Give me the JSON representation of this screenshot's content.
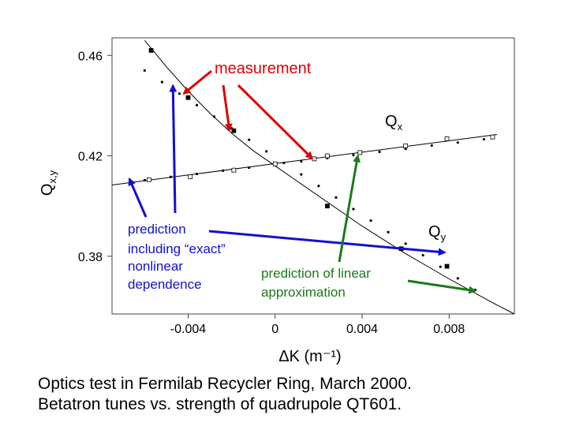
{
  "chart_data": {
    "type": "scatter",
    "xlabel": "ΔK (m⁻¹)",
    "ylabel": "Q",
    "ylabel_sub": "x,y",
    "xlim": [
      -0.0075,
      0.011
    ],
    "ylim": [
      0.357,
      0.467
    ],
    "x_ticks": [
      -0.004,
      0,
      0.004,
      0.008
    ],
    "x_tick_labels": [
      "-0.004",
      "0",
      "0.004",
      "0.008"
    ],
    "y_ticks": [
      0.38,
      0.42,
      0.46
    ],
    "y_tick_labels": [
      "0.38",
      "0.42",
      "0.46"
    ],
    "series": [
      {
        "name": "Q",
        "name_sub": "x",
        "measurement_marker": "open-square",
        "measurements": [
          {
            "x": -0.0058,
            "y": 0.4105
          },
          {
            "x": -0.0039,
            "y": 0.4117
          },
          {
            "x": -0.0019,
            "y": 0.4143
          },
          {
            "x": 0.0,
            "y": 0.4168
          },
          {
            "x": 0.0018,
            "y": 0.4188
          },
          {
            "x": 0.0024,
            "y": 0.42
          },
          {
            "x": 0.0039,
            "y": 0.4213
          },
          {
            "x": 0.006,
            "y": 0.424
          },
          {
            "x": 0.0079,
            "y": 0.4268
          },
          {
            "x": 0.01,
            "y": 0.4275
          }
        ],
        "nonlinear_curve": [
          {
            "x": -0.0075,
            "y": 0.4084
          },
          {
            "x": 0.0102,
            "y": 0.4285
          }
        ],
        "linear_dots": [
          {
            "x": -0.006,
            "y": 0.4103
          },
          {
            "x": -0.0048,
            "y": 0.4116
          },
          {
            "x": -0.0036,
            "y": 0.4128
          },
          {
            "x": -0.0024,
            "y": 0.4141
          },
          {
            "x": -0.0012,
            "y": 0.4153
          },
          {
            "x": 0.0,
            "y": 0.4166
          },
          {
            "x": 0.0012,
            "y": 0.4178
          },
          {
            "x": 0.0024,
            "y": 0.4191
          },
          {
            "x": 0.0036,
            "y": 0.4203
          },
          {
            "x": 0.0048,
            "y": 0.4216
          },
          {
            "x": 0.006,
            "y": 0.4228
          },
          {
            "x": 0.0072,
            "y": 0.4241
          },
          {
            "x": 0.0084,
            "y": 0.4253
          },
          {
            "x": 0.0096,
            "y": 0.4266
          }
        ]
      },
      {
        "name": "Q",
        "name_sub": "y",
        "measurement_marker": "filled-square",
        "measurements": [
          {
            "x": -0.0057,
            "y": 0.462
          },
          {
            "x": -0.004,
            "y": 0.4432
          },
          {
            "x": -0.0019,
            "y": 0.43
          },
          {
            "x": 0.0024,
            "y": 0.4
          },
          {
            "x": 0.0058,
            "y": 0.383
          },
          {
            "x": 0.0079,
            "y": 0.376
          }
        ],
        "nonlinear_curve": [
          {
            "x": -0.006,
            "y": 0.466
          },
          {
            "x": -0.005,
            "y": 0.4555
          },
          {
            "x": -0.004,
            "y": 0.4458
          },
          {
            "x": -0.003,
            "y": 0.437
          },
          {
            "x": -0.002,
            "y": 0.429
          },
          {
            "x": -0.001,
            "y": 0.422
          },
          {
            "x": 0.0,
            "y": 0.416
          },
          {
            "x": 0.001,
            "y": 0.41
          },
          {
            "x": 0.002,
            "y": 0.404
          },
          {
            "x": 0.003,
            "y": 0.398
          },
          {
            "x": 0.004,
            "y": 0.392
          },
          {
            "x": 0.005,
            "y": 0.3865
          },
          {
            "x": 0.006,
            "y": 0.381
          },
          {
            "x": 0.007,
            "y": 0.376
          },
          {
            "x": 0.008,
            "y": 0.371
          },
          {
            "x": 0.009,
            "y": 0.3662
          },
          {
            "x": 0.01,
            "y": 0.3615
          },
          {
            "x": 0.011,
            "y": 0.357
          }
        ],
        "linear_dots": [
          {
            "x": -0.006,
            "y": 0.454
          },
          {
            "x": -0.0052,
            "y": 0.4494
          },
          {
            "x": -0.0044,
            "y": 0.4448
          },
          {
            "x": -0.0036,
            "y": 0.4402
          },
          {
            "x": -0.0028,
            "y": 0.4356
          },
          {
            "x": -0.002,
            "y": 0.431
          },
          {
            "x": -0.0012,
            "y": 0.4264
          },
          {
            "x": -0.0004,
            "y": 0.4218
          },
          {
            "x": 0.0004,
            "y": 0.4172
          },
          {
            "x": 0.0012,
            "y": 0.4126
          },
          {
            "x": 0.002,
            "y": 0.408
          },
          {
            "x": 0.0028,
            "y": 0.4034
          },
          {
            "x": 0.0036,
            "y": 0.3988
          },
          {
            "x": 0.0044,
            "y": 0.3942
          },
          {
            "x": 0.0052,
            "y": 0.3896
          },
          {
            "x": 0.006,
            "y": 0.385
          },
          {
            "x": 0.0068,
            "y": 0.3804
          },
          {
            "x": 0.0076,
            "y": 0.3758
          },
          {
            "x": 0.0084,
            "y": 0.3712
          },
          {
            "x": 0.0092,
            "y": 0.3666
          }
        ]
      }
    ],
    "annotations": [
      {
        "text": "measurement",
        "color": "#e00000",
        "targets": [
          {
            "x": -0.0042,
            "y": 0.4448
          },
          {
            "x": -0.0021,
            "y": 0.4302
          },
          {
            "x": 0.0017,
            "y": 0.419
          }
        ]
      },
      {
        "text_lines": [
          "prediction",
          "including “exact”",
          "nonlinear",
          "dependence"
        ],
        "color": "#1010d0",
        "targets": [
          {
            "x": -0.0067,
            "y": 0.4108
          },
          {
            "x": -0.0047,
            "y": 0.448
          },
          {
            "x": 0.0078,
            "y": 0.3815
          }
        ]
      },
      {
        "text_lines": [
          "prediction of linear",
          "approximation"
        ],
        "color": "#1a7a1a",
        "targets": [
          {
            "x": 0.0038,
            "y": 0.42
          },
          {
            "x": 0.0092,
            "y": 0.3662
          }
        ]
      }
    ]
  },
  "caption": {
    "line1": "Optics test in Fermilab Recycler Ring, March 2000.",
    "line2": "Betatron tunes vs. strength of quadrupole QT601."
  }
}
